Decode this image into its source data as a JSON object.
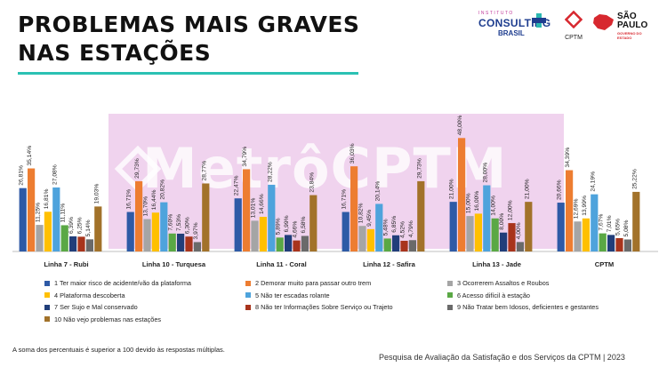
{
  "title": [
    "PROBLEMAS MAIS GRAVES",
    "NAS ESTAÇÕES"
  ],
  "logos": {
    "consulting_small": "INSTITUTO",
    "consulting_big": "CONSULTING",
    "consulting_brasil": "BRASIL",
    "cptm_name": "CPTM",
    "sp_line1": "SÃO",
    "sp_line2": "PAULO",
    "sp_gov": "GOVERNO DO ESTADO"
  },
  "watermark": "MetrôCPTM",
  "chart_data": {
    "type": "bar",
    "categories": [
      "Linha 7 - Rubi",
      "Linha 10 - Turquesa",
      "Linha 11 - Coral",
      "Linha 12 - Safira",
      "Linha 13 - Jade",
      "CPTM"
    ],
    "ylim": [
      0,
      50
    ],
    "series": [
      {
        "name": "1 Ter maior risco de acidente/vão da plataforma",
        "color": "#2e5aa6",
        "values": [
          26.81,
          16.71,
          22.47,
          16.71,
          21.0,
          20.66
        ],
        "labels": [
          "26,81%",
          "16,71%",
          "22,47%",
          "16,71%",
          "21,00%",
          "20,66%"
        ]
      },
      {
        "name": "2 Demorar muito para passar outro trem",
        "color": "#ed7d31",
        "values": [
          35.14,
          29.73,
          34.79,
          36.03,
          48.0,
          34.39
        ],
        "labels": [
          "35,14%",
          "29,73%",
          "34,79%",
          "36,03%",
          "48,00%",
          "34,39%"
        ]
      },
      {
        "name": "3 Ocorrerem Assaltos e Roubos",
        "color": "#a5a5a5",
        "values": [
          11.25,
          13.7,
          13.01,
          10.82,
          15.0,
          12.69
        ],
        "labels": [
          "11,25%",
          "13,70%",
          "13,01%",
          "10,82%",
          "15,00%",
          "12,69%"
        ]
      },
      {
        "name": "4 Plataforma descoberta",
        "color": "#ffc000",
        "values": [
          16.81,
          16.44,
          14.66,
          9.45,
          16.0,
          13.99
        ],
        "labels": [
          "16,81%",
          "16,44%",
          "14,66%",
          "9,45%",
          "16,00%",
          "13,99%"
        ]
      },
      {
        "name": "5 Não ter escadas rolante",
        "color": "#4ea3dc",
        "values": [
          27.08,
          20.82,
          28.22,
          20.14,
          28.0,
          24.19
        ],
        "labels": [
          "27,08%",
          "20,82%",
          "28,22%",
          "20,14%",
          "28,00%",
          "24,19%"
        ]
      },
      {
        "name": "6 Acesso difícil à estação",
        "color": "#5aa845",
        "values": [
          11.11,
          7.6,
          5.89,
          5.48,
          14.0,
          7.67
        ],
        "labels": [
          "11,11%",
          "7,60%",
          "5,89%",
          "5,48%",
          "14,00%",
          "7,67%"
        ]
      },
      {
        "name": "7 Ser Sujo e Mal conservado",
        "color": "#213e7a",
        "values": [
          6.39,
          7.53,
          6.99,
          6.85,
          8.0,
          7.01
        ],
        "labels": [
          "6,39%",
          "7,53%",
          "6,99%",
          "6,85%",
          "8,00%",
          "7,01%"
        ]
      },
      {
        "name": "8 Não ter Informações Sobre Serviço ou Trajeto",
        "color": "#a8341c",
        "values": [
          6.25,
          6.3,
          4.66,
          4.52,
          12.0,
          5.65
        ],
        "labels": [
          "6,25%",
          "6,30%",
          "4,66%",
          "4,52%",
          "12,00%",
          "5,65%"
        ]
      },
      {
        "name": "9 Não Tratar bem Idosos, deficientes e gestantes",
        "color": "#6a6a6a",
        "values": [
          5.14,
          3.97,
          6.58,
          4.79,
          4.0,
          5.08
        ],
        "labels": [
          "5,14%",
          "3,97%",
          "6,58%",
          "4,79%",
          "4,00%",
          "5,08%"
        ]
      },
      {
        "name": "10 Não vejo problemas nas estações",
        "color": "#a2722a",
        "values": [
          19.03,
          28.77,
          23.84,
          29.73,
          21.0,
          25.22
        ],
        "labels": [
          "19,03%",
          "28,77%",
          "23,84%",
          "29,73%",
          "21,00%",
          "25,22%"
        ]
      }
    ]
  },
  "footnote": "A soma dos percentuais é superior a 100 devido às respostas múltiplas.",
  "source": "Pesquisa de Avaliação da Satisfação e dos Serviços da CPTM | 2023"
}
